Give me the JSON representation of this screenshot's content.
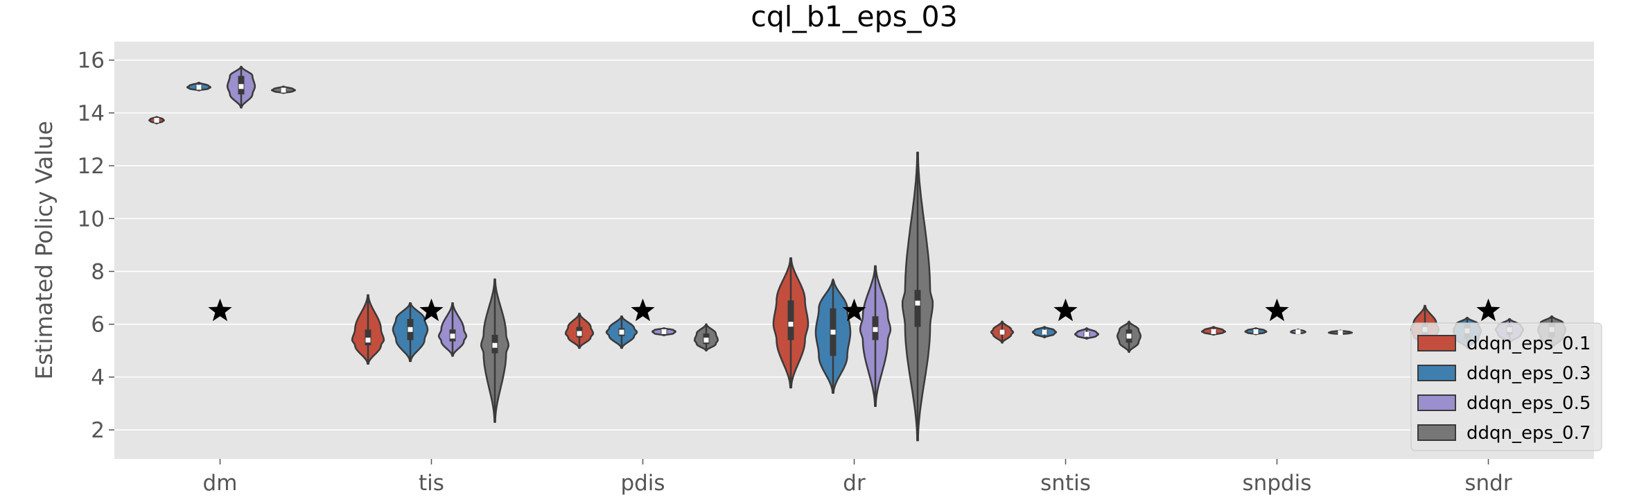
{
  "chart_data": {
    "type": "violin",
    "title": "cql_b1_eps_03",
    "xlabel": "",
    "ylabel": "Estimated Policy Value",
    "ylim": [
      0.9,
      16.7
    ],
    "yticks": [
      2,
      4,
      6,
      8,
      10,
      12,
      14,
      16
    ],
    "categories": [
      "dm",
      "tis",
      "pdis",
      "dr",
      "sntis",
      "snpdis",
      "sndr"
    ],
    "grid": true,
    "legend_position": "lower right",
    "colors": {
      "background": "#e5e5e5",
      "grid": "#ffffff",
      "outline": "#3a3a3a",
      "star": "#000000"
    },
    "series": [
      {
        "name": "ddqn_eps_0.1",
        "color": "#c44e3d",
        "distributions": [
          {
            "min": 13.6,
            "q1": 13.68,
            "median": 13.72,
            "q3": 13.77,
            "max": 13.85,
            "width": 0.35
          },
          {
            "min": 4.5,
            "q1": 5.2,
            "median": 5.4,
            "q3": 5.8,
            "max": 7.1,
            "width": 0.75
          },
          {
            "min": 5.1,
            "q1": 5.5,
            "median": 5.65,
            "q3": 5.9,
            "max": 6.4,
            "width": 0.65
          },
          {
            "min": 3.6,
            "q1": 5.4,
            "median": 6.0,
            "q3": 6.9,
            "max": 8.5,
            "width": 0.82
          },
          {
            "min": 5.3,
            "q1": 5.6,
            "median": 5.7,
            "q3": 5.8,
            "max": 6.1,
            "width": 0.52
          },
          {
            "min": 5.6,
            "q1": 5.68,
            "median": 5.72,
            "q3": 5.78,
            "max": 5.9,
            "width": 0.55
          },
          {
            "min": 5.2,
            "q1": 5.55,
            "median": 5.8,
            "q3": 6.05,
            "max": 6.7,
            "width": 0.65
          }
        ]
      },
      {
        "name": "ddqn_eps_0.3",
        "color": "#3f7fb0",
        "distributions": [
          {
            "min": 14.85,
            "q1": 14.92,
            "median": 14.97,
            "q3": 15.03,
            "max": 15.15,
            "width": 0.55
          },
          {
            "min": 4.6,
            "q1": 5.4,
            "median": 5.8,
            "q3": 6.2,
            "max": 6.8,
            "width": 0.82
          },
          {
            "min": 5.1,
            "q1": 5.55,
            "median": 5.7,
            "q3": 5.85,
            "max": 6.3,
            "width": 0.72
          },
          {
            "min": 3.4,
            "q1": 4.8,
            "median": 5.7,
            "q3": 6.6,
            "max": 7.7,
            "width": 0.82
          },
          {
            "min": 5.5,
            "q1": 5.62,
            "median": 5.7,
            "q3": 5.78,
            "max": 5.9,
            "width": 0.55
          },
          {
            "min": 5.62,
            "q1": 5.68,
            "median": 5.72,
            "q3": 5.77,
            "max": 5.85,
            "width": 0.5
          },
          {
            "min": 5.1,
            "q1": 5.45,
            "median": 5.75,
            "q3": 6.0,
            "max": 6.25,
            "width": 0.65
          }
        ]
      },
      {
        "name": "ddqn_eps_0.5",
        "color": "#9b8fce",
        "distributions": [
          {
            "min": 14.2,
            "q1": 14.7,
            "median": 15.0,
            "q3": 15.4,
            "max": 15.75,
            "width": 0.65
          },
          {
            "min": 4.8,
            "q1": 5.35,
            "median": 5.55,
            "q3": 5.8,
            "max": 6.8,
            "width": 0.65
          },
          {
            "min": 5.58,
            "q1": 5.65,
            "median": 5.72,
            "q3": 5.78,
            "max": 5.85,
            "width": 0.55
          },
          {
            "min": 2.9,
            "q1": 5.4,
            "median": 5.8,
            "q3": 6.3,
            "max": 8.2,
            "width": 0.72
          },
          {
            "min": 5.45,
            "q1": 5.55,
            "median": 5.62,
            "q3": 5.7,
            "max": 5.85,
            "width": 0.55
          },
          {
            "min": 5.64,
            "q1": 5.68,
            "median": 5.71,
            "q3": 5.74,
            "max": 5.8,
            "width": 0.35
          },
          {
            "min": 5.3,
            "q1": 5.6,
            "median": 5.8,
            "q3": 5.95,
            "max": 6.2,
            "width": 0.65
          }
        ]
      },
      {
        "name": "ddqn_eps_0.7",
        "color": "#777777",
        "distributions": [
          {
            "min": 14.75,
            "q1": 14.82,
            "median": 14.86,
            "q3": 14.91,
            "max": 15.0,
            "width": 0.55
          },
          {
            "min": 2.3,
            "q1": 4.9,
            "median": 5.2,
            "q3": 5.6,
            "max": 7.7,
            "width": 0.65
          },
          {
            "min": 5.0,
            "q1": 5.25,
            "median": 5.4,
            "q3": 5.65,
            "max": 6.0,
            "width": 0.55
          },
          {
            "min": 1.6,
            "q1": 5.9,
            "median": 6.8,
            "q3": 7.3,
            "max": 12.5,
            "width": 0.72
          },
          {
            "min": 4.95,
            "q1": 5.3,
            "median": 5.55,
            "q3": 5.8,
            "max": 6.1,
            "width": 0.55
          },
          {
            "min": 5.62,
            "q1": 5.66,
            "median": 5.68,
            "q3": 5.71,
            "max": 5.76,
            "width": 0.55
          },
          {
            "min": 5.1,
            "q1": 5.5,
            "median": 5.8,
            "q3": 6.05,
            "max": 6.3,
            "width": 0.65
          }
        ]
      }
    ],
    "reference_markers": {
      "marker": "star",
      "values": [
        6.5,
        6.5,
        6.5,
        6.5,
        6.5,
        6.5,
        6.5
      ]
    }
  }
}
